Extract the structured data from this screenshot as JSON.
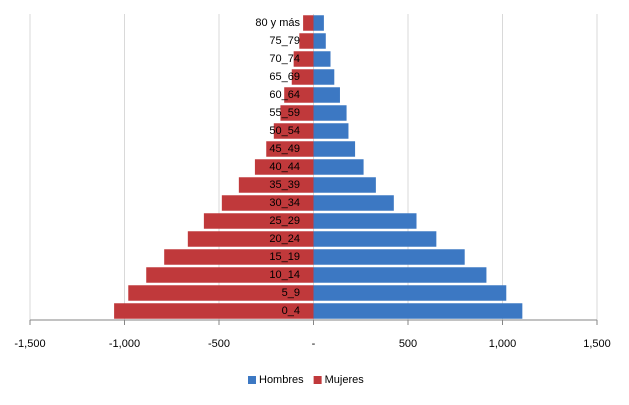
{
  "chart_data": {
    "type": "bar",
    "orientation": "horizontal",
    "stacked": true,
    "categories": [
      "0_4",
      "5_9",
      "10_14",
      "15_19",
      "20_24",
      "25_29",
      "30_34",
      "35_39",
      "40_44",
      "45_49",
      "50_54",
      "55_59",
      "60_64",
      "65_69",
      "70_74",
      "75_79",
      "80 y más"
    ],
    "series": [
      {
        "name": "Hombres",
        "color": "#3c78c3",
        "values": [
          1105,
          1020,
          915,
          800,
          650,
          545,
          425,
          330,
          265,
          220,
          185,
          175,
          140,
          110,
          90,
          65,
          55
        ]
      },
      {
        "name": "Mujeres",
        "color": "#c0393b",
        "values": [
          -1055,
          -980,
          -885,
          -790,
          -665,
          -580,
          -485,
          -395,
          -310,
          -250,
          -210,
          -175,
          -155,
          -115,
          -105,
          -75,
          -55
        ]
      }
    ],
    "xlim": [
      -1500,
      1500
    ],
    "xticks": [
      {
        "value": -1500,
        "label": "-1,500"
      },
      {
        "value": -1000,
        "label": "-1,000"
      },
      -500,
      {
        "value": 0,
        "label": "-"
      },
      500,
      {
        "value": 1000,
        "label": "1,000"
      },
      {
        "value": 1500,
        "label": "1,500"
      }
    ],
    "grid": true,
    "legend": "bottom"
  }
}
